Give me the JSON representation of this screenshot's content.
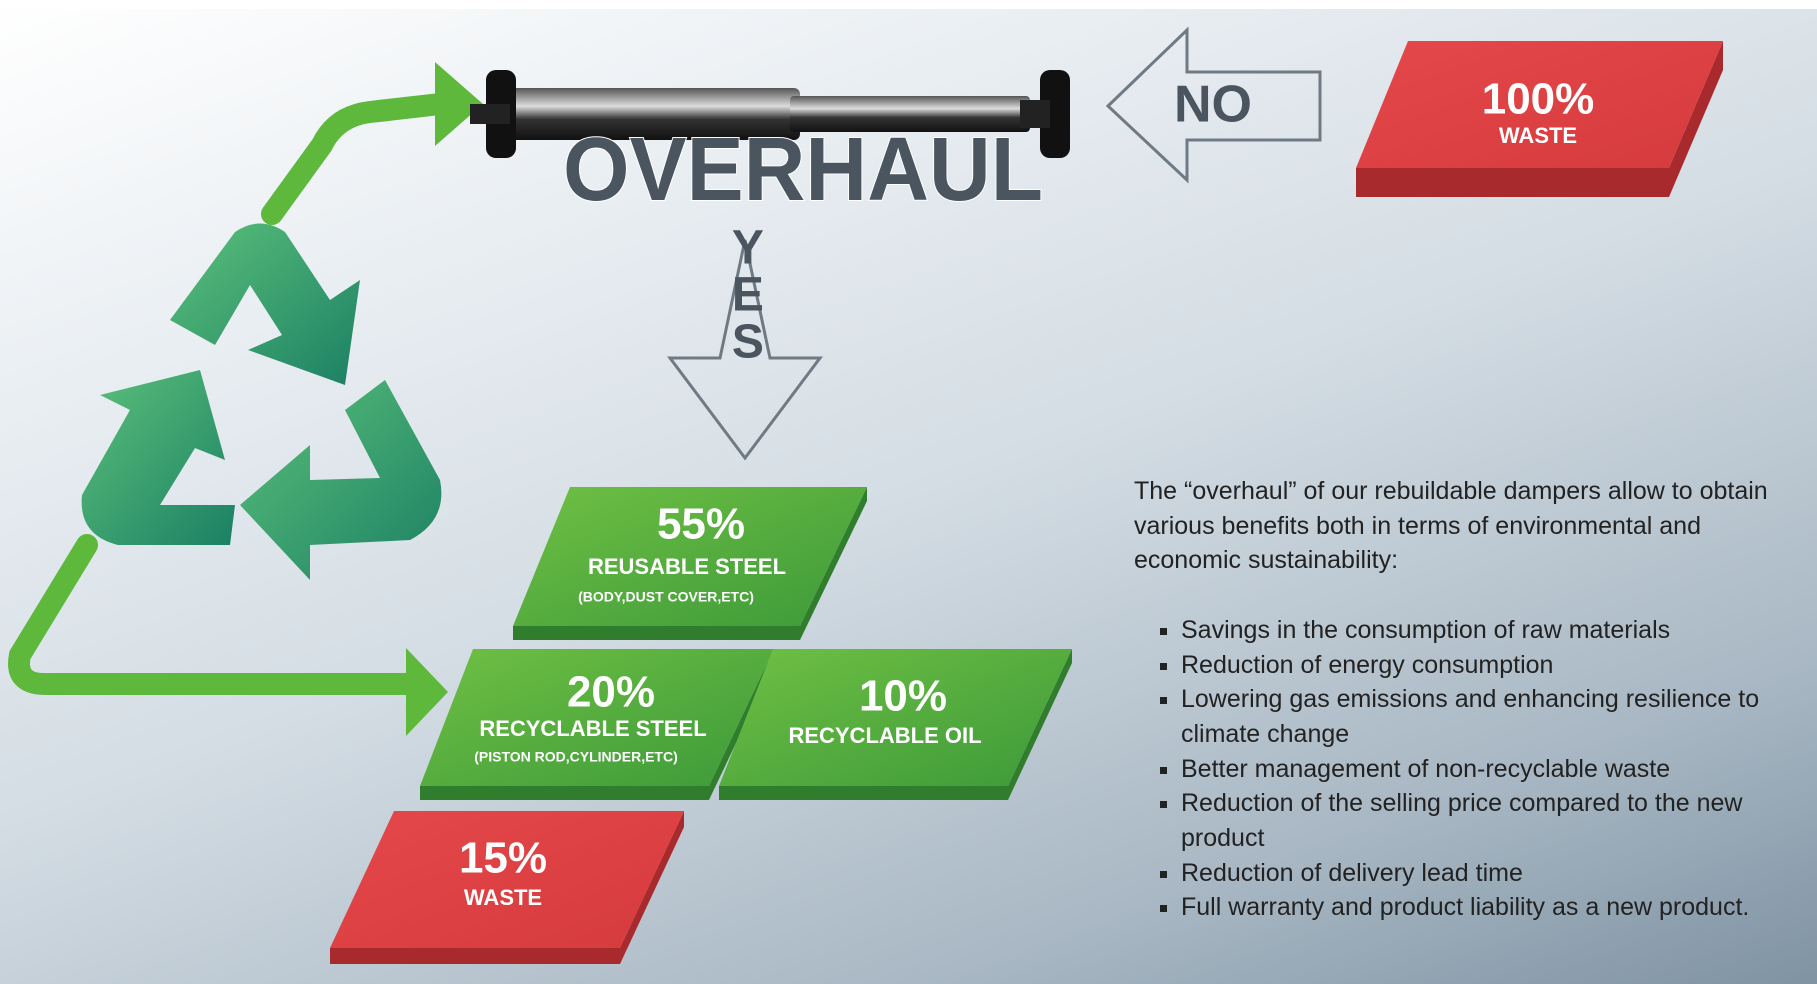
{
  "title": "OVERHAUL",
  "decision": {
    "no": "NO",
    "yes": "YES"
  },
  "no_outcome": {
    "percent": "100%",
    "label": "WASTE"
  },
  "yes_outcomes": [
    {
      "percent": "55%",
      "label": "REUSABLE STEEL",
      "detail": "(BODY,DUST COVER,ETC)"
    },
    {
      "percent": "20%",
      "label": "RECYCLABLE STEEL",
      "detail": "(PISTON ROD,CYLINDER,ETC)"
    },
    {
      "percent": "10%",
      "label": "RECYCLABLE OIL"
    },
    {
      "percent": "15%",
      "label": "WASTE"
    }
  ],
  "description": {
    "intro": "The “overhaul” of our rebuildable dampers allow to obtain various benefits both in terms of environmental and economic sustainability:",
    "benefits": [
      "Savings in the consumption of raw materials",
      "Reduction of energy consumption",
      "Lowering gas emissions and enhancing resilience to climate change",
      "Better management of non-recyclable waste",
      "Reduction of the selling price compared to the new product",
      "Reduction of delivery lead time",
      "Full warranty and product liability as a new product."
    ]
  }
}
